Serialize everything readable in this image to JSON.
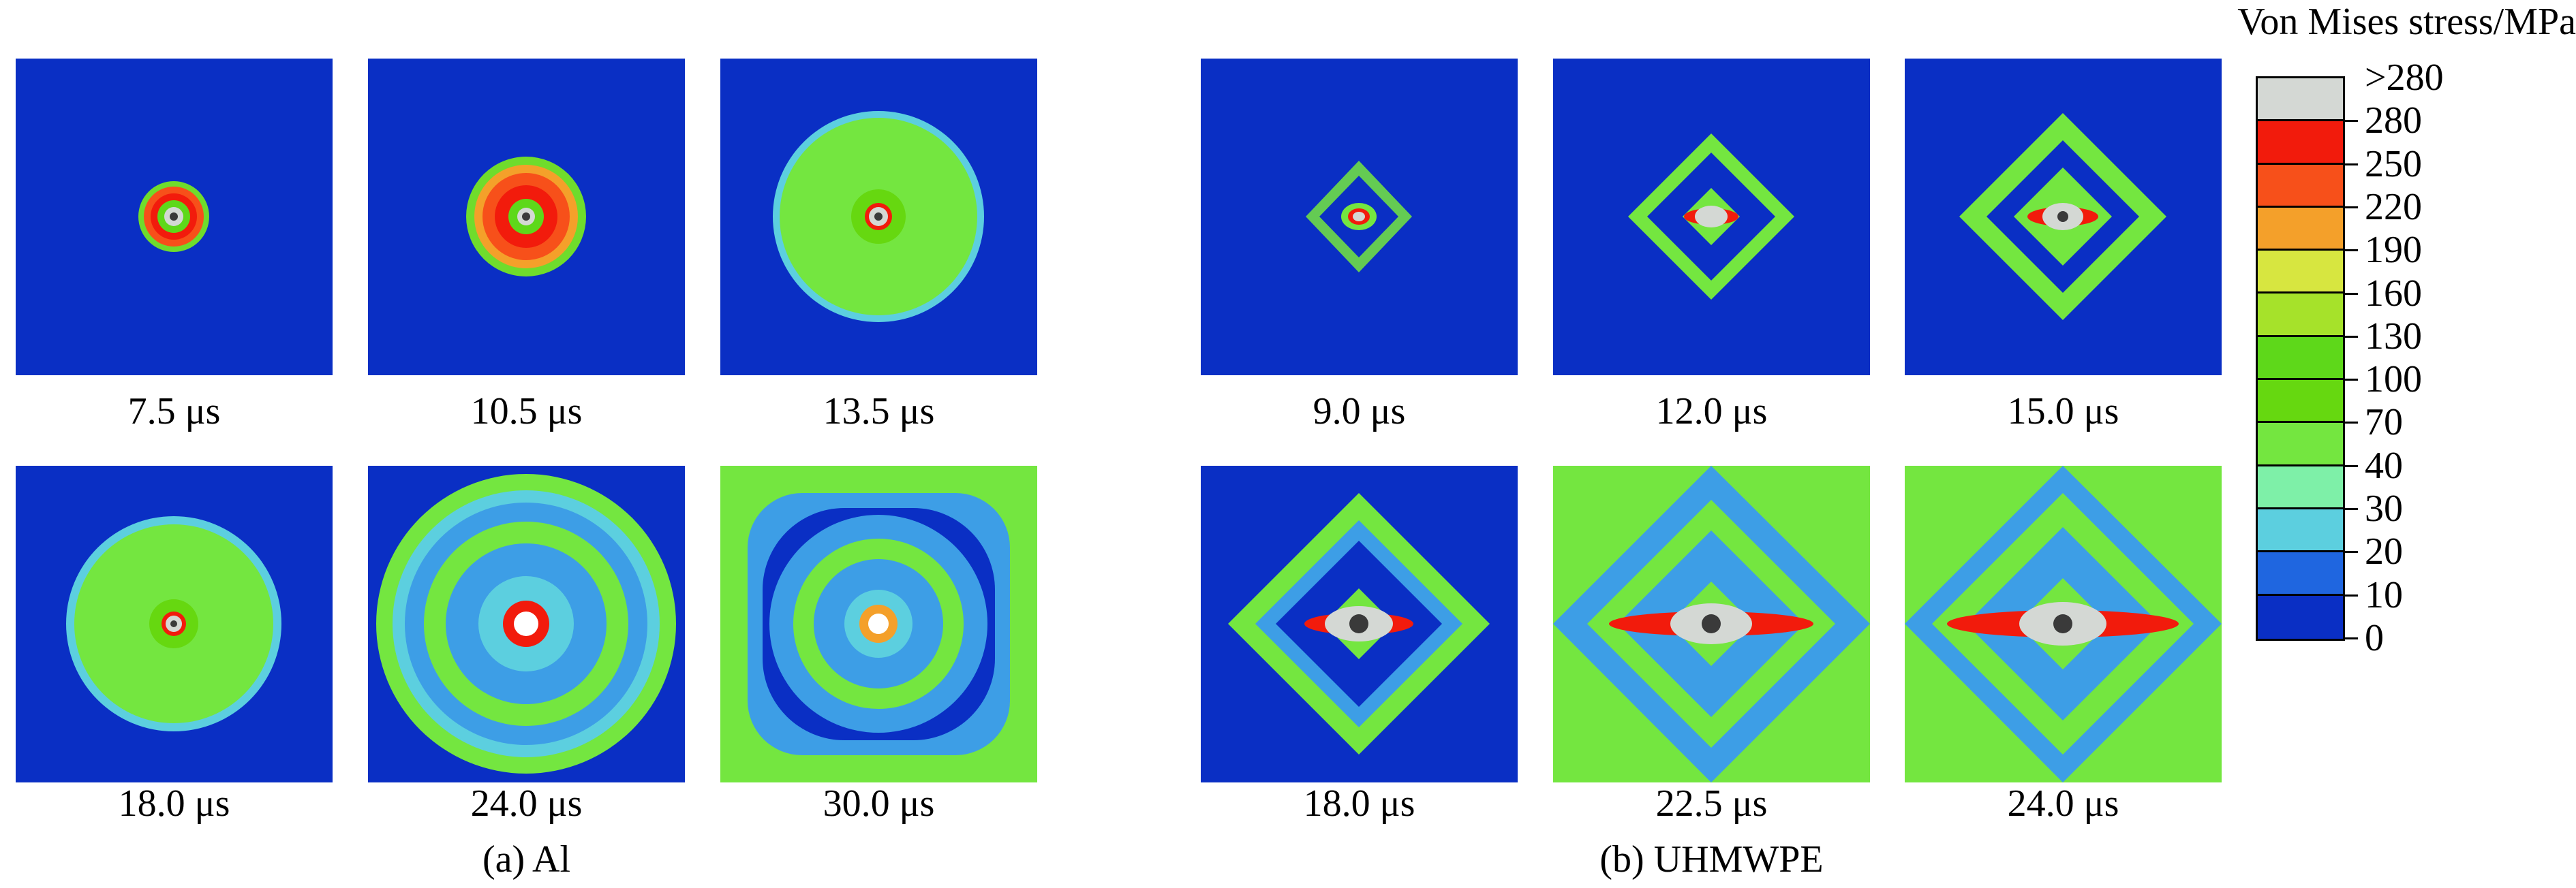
{
  "figure": {
    "groups": [
      {
        "caption": "(a) Al",
        "panels": [
          {
            "label": "7.5 μs",
            "style": "al1"
          },
          {
            "label": "10.5 μs",
            "style": "al2"
          },
          {
            "label": "13.5 μs",
            "style": "al3"
          },
          {
            "label": "18.0 μs",
            "style": "al4"
          },
          {
            "label": "24.0 μs",
            "style": "al5"
          },
          {
            "label": "30.0 μs",
            "style": "al6"
          }
        ]
      },
      {
        "caption": "(b) UHMWPE",
        "panels": [
          {
            "label": "9.0 μs",
            "style": "pe1"
          },
          {
            "label": "12.0 μs",
            "style": "pe2"
          },
          {
            "label": "15.0 μs",
            "style": "pe3"
          },
          {
            "label": "18.0 μs",
            "style": "pe4"
          },
          {
            "label": "22.5 μs",
            "style": "pe5"
          },
          {
            "label": "24.0 μs",
            "style": "pe6"
          }
        ]
      }
    ]
  },
  "legend": {
    "title": "Von Mises stress/MPa",
    "labels": [
      ">280",
      "280",
      "250",
      "220",
      "190",
      "160",
      "130",
      "100",
      "70",
      "40",
      "30",
      "20",
      "10",
      "0"
    ],
    "colors": [
      "#d4d8d4",
      "#f21b0c",
      "#f7501a",
      "#f4a02a",
      "#d7e640",
      "#a6e22a",
      "#5ed81a",
      "#66d810",
      "#74e640",
      "#7ef0a8",
      "#5ccfdf",
      "#1f66e0",
      "#0a2fc4"
    ]
  }
}
